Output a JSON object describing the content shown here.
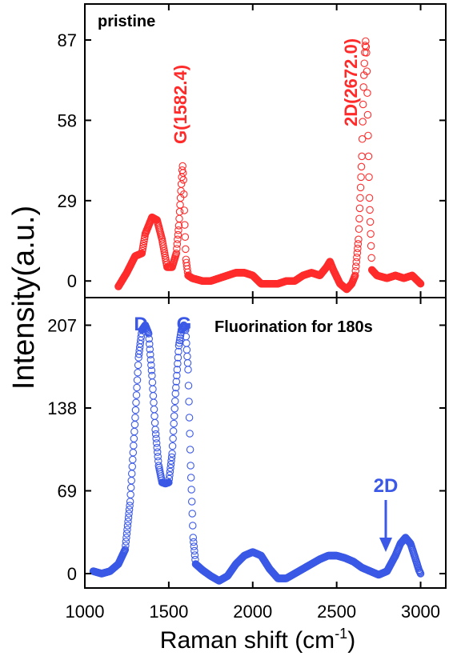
{
  "figure": {
    "ylabel": "Intensity(a.u.)",
    "xlabel_main": "Raman shift (cm",
    "xlabel_sup": "-1",
    "xlabel_close": ")"
  },
  "chart_data": [
    {
      "type": "scatter",
      "title": "pristine",
      "xlim": [
        1000,
        3150
      ],
      "ylim": [
        -6,
        100
      ],
      "yticks": [
        0,
        29,
        58,
        87
      ],
      "xticks": [
        1000,
        1500,
        2000,
        2500,
        3000
      ],
      "color": "#ff2b2b",
      "series": [
        {
          "x": [
            1200,
            1250,
            1300,
            1340,
            1360,
            1400,
            1430,
            1460,
            1490,
            1520,
            1545,
            1560,
            1570,
            1578,
            1582,
            1588,
            1594,
            1602,
            1615,
            1640,
            1700,
            1750,
            1800,
            1850,
            1900,
            1950,
            2000,
            2050,
            2100,
            2150,
            2200,
            2250,
            2300,
            2350,
            2400,
            2440,
            2460,
            2480,
            2520,
            2560,
            2590,
            2610,
            2630,
            2650,
            2660,
            2667,
            2672,
            2678,
            2685,
            2695,
            2710,
            2740,
            2800,
            2850,
            2900,
            2950,
            3000
          ],
          "y": [
            -2,
            3,
            9,
            10,
            17,
            23,
            22,
            15,
            5,
            5,
            10,
            20,
            30,
            38,
            42,
            36,
            22,
            8,
            2,
            1,
            0,
            0,
            1,
            2,
            3,
            3,
            2,
            -1,
            -1,
            -1,
            0,
            0,
            2,
            3,
            2,
            5,
            7,
            4,
            -1,
            -3,
            -1,
            2,
            15,
            45,
            70,
            82,
            87,
            82,
            60,
            30,
            4,
            2,
            1,
            2,
            1,
            2,
            -1
          ]
        }
      ],
      "annotations": [
        "G(1582.4)",
        "2D(2672.0)"
      ]
    },
    {
      "type": "scatter",
      "title": "Fluorination for 180s",
      "xlim": [
        1000,
        3150
      ],
      "ylim": [
        -12,
        230
      ],
      "yticks": [
        0,
        69,
        138,
        207
      ],
      "xticks": [
        1000,
        1500,
        2000,
        2500,
        3000
      ],
      "xtick_labels": [
        "1000",
        "1500",
        "2000",
        "2500",
        "3000"
      ],
      "color": "#3b59e6",
      "series": [
        {
          "x": [
            1050,
            1100,
            1150,
            1200,
            1240,
            1270,
            1300,
            1320,
            1340,
            1360,
            1380,
            1400,
            1420,
            1440,
            1460,
            1480,
            1500,
            1520,
            1540,
            1560,
            1575,
            1590,
            1600,
            1615,
            1630,
            1645,
            1660,
            1700,
            1750,
            1800,
            1850,
            1900,
            1950,
            2000,
            2050,
            2100,
            2150,
            2200,
            2250,
            2300,
            2350,
            2400,
            2450,
            2500,
            2550,
            2600,
            2650,
            2700,
            2750,
            2800,
            2850,
            2880,
            2910,
            2940,
            2970,
            2990,
            3000
          ],
          "y": [
            2,
            0,
            2,
            8,
            20,
            60,
            130,
            180,
            203,
            207,
            200,
            165,
            120,
            90,
            76,
            75,
            76,
            100,
            150,
            190,
            203,
            207,
            203,
            170,
            90,
            30,
            8,
            3,
            -2,
            -6,
            -2,
            8,
            15,
            18,
            15,
            4,
            -4,
            -4,
            0,
            4,
            8,
            12,
            15,
            15,
            13,
            10,
            5,
            2,
            -1,
            2,
            15,
            25,
            30,
            25,
            12,
            3,
            0
          ]
        }
      ],
      "annotations": [
        "D",
        "G",
        "2D"
      ]
    }
  ]
}
